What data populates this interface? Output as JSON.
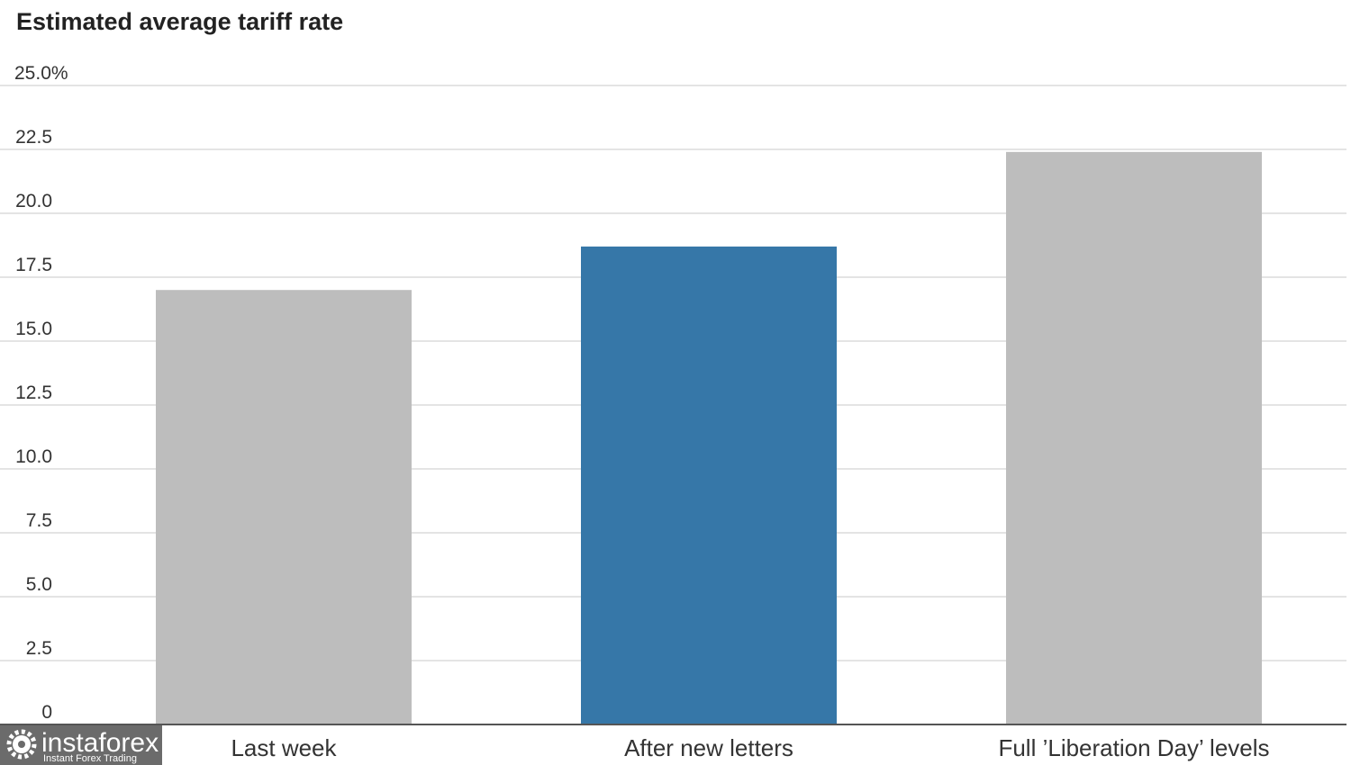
{
  "chart_data": {
    "type": "bar",
    "title": "Estimated average tariff rate",
    "categories": [
      "Last week",
      "After new letters",
      "Full ’Liberation Day’ levels"
    ],
    "values": [
      17.0,
      18.7,
      22.4
    ],
    "bar_colors": [
      "#bdbdbd",
      "#3677a8",
      "#bdbdbd"
    ],
    "ylim": [
      0,
      25
    ],
    "yticks": [
      0,
      2.5,
      5,
      7.5,
      10,
      12.5,
      15,
      17.5,
      20,
      22.5,
      25
    ],
    "ytick_labels": [
      "0",
      "2.5",
      "5.0",
      "7.5",
      "10.0",
      "12.5",
      "15.0",
      "17.5",
      "20.0",
      "22.5",
      "25.0%"
    ],
    "xlabel": "",
    "ylabel": "",
    "grid": true,
    "legend": "none"
  },
  "watermark": {
    "brand": "instaforex",
    "tagline": "Instant Forex Trading",
    "icon": "gear-icon",
    "background": "#6b6b6b"
  }
}
